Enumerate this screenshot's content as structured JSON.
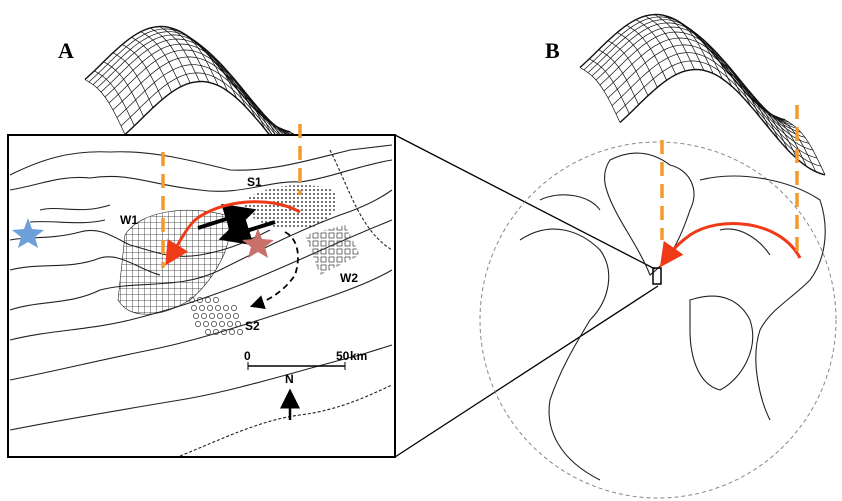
{
  "panels": [
    {
      "label": "A",
      "map_labels": [
        "S1",
        "W1",
        "W2",
        "S2"
      ],
      "scale_bar": {
        "start": "0",
        "end": "50",
        "unit": "km"
      },
      "north": "N"
    },
    {
      "label": "B"
    }
  ]
}
